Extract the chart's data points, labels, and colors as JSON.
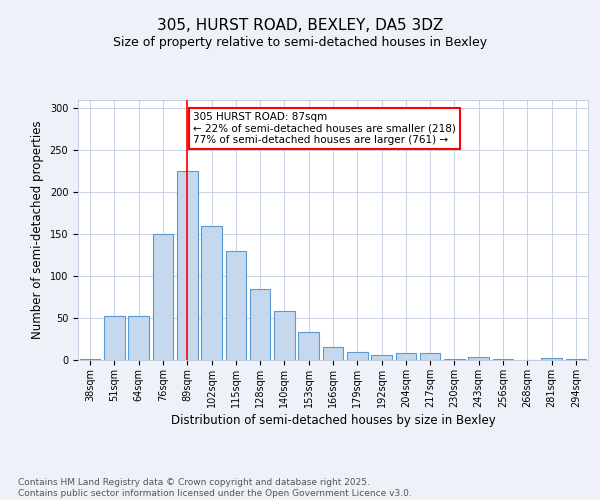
{
  "title_line1": "305, HURST ROAD, BEXLEY, DA5 3DZ",
  "title_line2": "Size of property relative to semi-detached houses in Bexley",
  "xlabel": "Distribution of semi-detached houses by size in Bexley",
  "ylabel": "Number of semi-detached properties",
  "categories": [
    "38sqm",
    "51sqm",
    "64sqm",
    "76sqm",
    "89sqm",
    "102sqm",
    "115sqm",
    "128sqm",
    "140sqm",
    "153sqm",
    "166sqm",
    "179sqm",
    "192sqm",
    "204sqm",
    "217sqm",
    "230sqm",
    "243sqm",
    "256sqm",
    "268sqm",
    "281sqm",
    "294sqm"
  ],
  "values": [
    1,
    52,
    52,
    150,
    225,
    160,
    130,
    85,
    58,
    33,
    16,
    10,
    6,
    8,
    8,
    1,
    4,
    1,
    0,
    2,
    1
  ],
  "bar_color": "#c5d8ed",
  "bar_edge_color": "#5b9bd5",
  "red_line_index": 4,
  "annotation_text": "305 HURST ROAD: 87sqm\n← 22% of semi-detached houses are smaller (218)\n77% of semi-detached houses are larger (761) →",
  "annotation_box_color": "white",
  "annotation_box_edge_color": "red",
  "ylim": [
    0,
    310
  ],
  "yticks": [
    0,
    50,
    100,
    150,
    200,
    250,
    300
  ],
  "background_color": "#eef2f8",
  "plot_background_color": "white",
  "footer_text": "Contains HM Land Registry data © Crown copyright and database right 2025.\nContains public sector information licensed under the Open Government Licence v3.0.",
  "title_fontsize": 11,
  "subtitle_fontsize": 9,
  "axis_label_fontsize": 8.5,
  "tick_fontsize": 7,
  "annotation_fontsize": 7.5,
  "footer_fontsize": 6.5
}
